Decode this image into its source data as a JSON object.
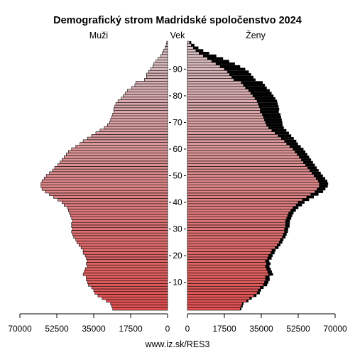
{
  "chart_data": {
    "type": "bar",
    "title": "Demografický strom Madridské spoločenstvo 2024",
    "left_label": "Muži",
    "middle_label": "Vek",
    "right_label": "Ženy",
    "source": "www.iz.sk/RES3",
    "xlim": [
      0,
      70000
    ],
    "x_ticks": [
      "70000",
      "52500",
      "35000",
      "17500",
      "0",
      "0",
      "17500",
      "35000",
      "52500",
      "70000"
    ],
    "age_ticks": [
      "10",
      "20",
      "30",
      "40",
      "50",
      "60",
      "70",
      "80",
      "90"
    ],
    "age_range": [
      0,
      100
    ],
    "grid": false,
    "colors": {
      "young": "#e05050",
      "old": "#d9c4c8",
      "outline": "#000000",
      "excess": "#000000"
    },
    "series": [
      {
        "name": "Muži",
        "ages": [
          0,
          1,
          2,
          3,
          4,
          5,
          6,
          7,
          8,
          9,
          10,
          11,
          12,
          13,
          14,
          15,
          16,
          17,
          18,
          19,
          20,
          21,
          22,
          23,
          24,
          25,
          26,
          27,
          28,
          29,
          30,
          31,
          32,
          33,
          34,
          35,
          36,
          37,
          38,
          39,
          40,
          41,
          42,
          43,
          44,
          45,
          46,
          47,
          48,
          49,
          50,
          51,
          52,
          53,
          54,
          55,
          56,
          57,
          58,
          59,
          60,
          61,
          62,
          63,
          64,
          65,
          66,
          67,
          68,
          69,
          70,
          71,
          72,
          73,
          74,
          75,
          76,
          77,
          78,
          79,
          80,
          81,
          82,
          83,
          84,
          85,
          86,
          87,
          88,
          89,
          90,
          91,
          92,
          93,
          94,
          95,
          96,
          97,
          98,
          99,
          100
        ],
        "values": [
          26000,
          26500,
          27000,
          29000,
          31000,
          33000,
          34500,
          35000,
          36000,
          37500,
          38000,
          38500,
          38500,
          40000,
          39500,
          39000,
          38000,
          38500,
          38000,
          38500,
          39000,
          40000,
          40000,
          41000,
          42000,
          43000,
          43500,
          44500,
          45000,
          45500,
          45000,
          45500,
          45500,
          45000,
          45500,
          46000,
          46500,
          47000,
          47500,
          49000,
          50000,
          52000,
          54000,
          56000,
          58000,
          59500,
          60000,
          60000,
          59500,
          58500,
          57500,
          56000,
          54500,
          53500,
          52000,
          51000,
          50000,
          49000,
          48000,
          47000,
          45500,
          43500,
          41500,
          40000,
          38000,
          36000,
          34000,
          32000,
          30000,
          28500,
          27500,
          27000,
          26500,
          26000,
          25500,
          25500,
          25000,
          24500,
          23500,
          22000,
          21000,
          20000,
          19000,
          17000,
          15500,
          15000,
          11000,
          10000,
          10000,
          9000,
          8000,
          7000,
          6500,
          5500,
          4500,
          3200,
          2500,
          1800,
          1200,
          700,
          400
        ]
      },
      {
        "name": "Ženy",
        "ages": [
          0,
          1,
          2,
          3,
          4,
          5,
          6,
          7,
          8,
          9,
          10,
          11,
          12,
          13,
          14,
          15,
          16,
          17,
          18,
          19,
          20,
          21,
          22,
          23,
          24,
          25,
          26,
          27,
          28,
          29,
          30,
          31,
          32,
          33,
          34,
          35,
          36,
          37,
          38,
          39,
          40,
          41,
          42,
          43,
          44,
          45,
          46,
          47,
          48,
          49,
          50,
          51,
          52,
          53,
          54,
          55,
          56,
          57,
          58,
          59,
          60,
          61,
          62,
          63,
          64,
          65,
          66,
          67,
          68,
          69,
          70,
          71,
          72,
          73,
          74,
          75,
          76,
          77,
          78,
          79,
          80,
          81,
          82,
          83,
          84,
          85,
          86,
          87,
          88,
          89,
          90,
          91,
          92,
          93,
          94,
          95,
          96,
          97,
          98,
          99,
          100
        ],
        "values": [
          25000,
          25500,
          26000,
          28000,
          29500,
          31500,
          33000,
          33500,
          34500,
          36000,
          36500,
          37000,
          37000,
          38500,
          38000,
          37500,
          37000,
          37500,
          37000,
          38000,
          38500,
          39500,
          40000,
          41500,
          42500,
          43500,
          44000,
          45000,
          45500,
          46000,
          46000,
          46500,
          46500,
          46500,
          47000,
          47500,
          48000,
          49000,
          50000,
          51500,
          52500,
          54500,
          56500,
          58500,
          60500,
          61500,
          62500,
          62500,
          62000,
          61000,
          60000,
          59000,
          58000,
          57000,
          56000,
          55000,
          54000,
          53000,
          52000,
          51000,
          50000,
          48500,
          47000,
          46000,
          44500,
          43000,
          41500,
          40000,
          38500,
          37500,
          37000,
          36500,
          36000,
          35500,
          34500,
          34500,
          34000,
          33500,
          33000,
          32000,
          31000,
          30000,
          29000,
          27500,
          26500,
          25500,
          22000,
          21000,
          20000,
          19000,
          17500,
          15500,
          13500,
          11500,
          9500,
          7500,
          5500,
          4000,
          2800,
          1800,
          1000
        ],
        "excess_values": [
          600,
          700,
          600,
          900,
          1000,
          1200,
          1300,
          1400,
          1600,
          1800,
          1900,
          2000,
          1900,
          2100,
          2000,
          2000,
          1900,
          1900,
          1800,
          1900,
          1900,
          1800,
          1800,
          1700,
          1600,
          1500,
          1500,
          1500,
          1500,
          1600,
          1800,
          1900,
          2000,
          2100,
          2200,
          2200,
          2300,
          2400,
          2600,
          2800,
          3000,
          3200,
          3400,
          3600,
          3800,
          3900,
          4000,
          4200,
          4300,
          4300,
          4200,
          4200,
          4200,
          4300,
          4400,
          4500,
          4600,
          4700,
          4800,
          4900,
          5000,
          5200,
          5400,
          5600,
          5900,
          6200,
          6600,
          6900,
          7200,
          7600,
          8000,
          8200,
          8400,
          8600,
          8800,
          9000,
          9200,
          9300,
          9500,
          9700,
          9800,
          9900,
          10000,
          10100,
          10200,
          10200,
          10300,
          10300,
          10200,
          10100,
          9900,
          9500,
          9000,
          8300,
          7400,
          6200,
          4800,
          3500,
          2400,
          1500,
          800
        ]
      }
    ]
  }
}
